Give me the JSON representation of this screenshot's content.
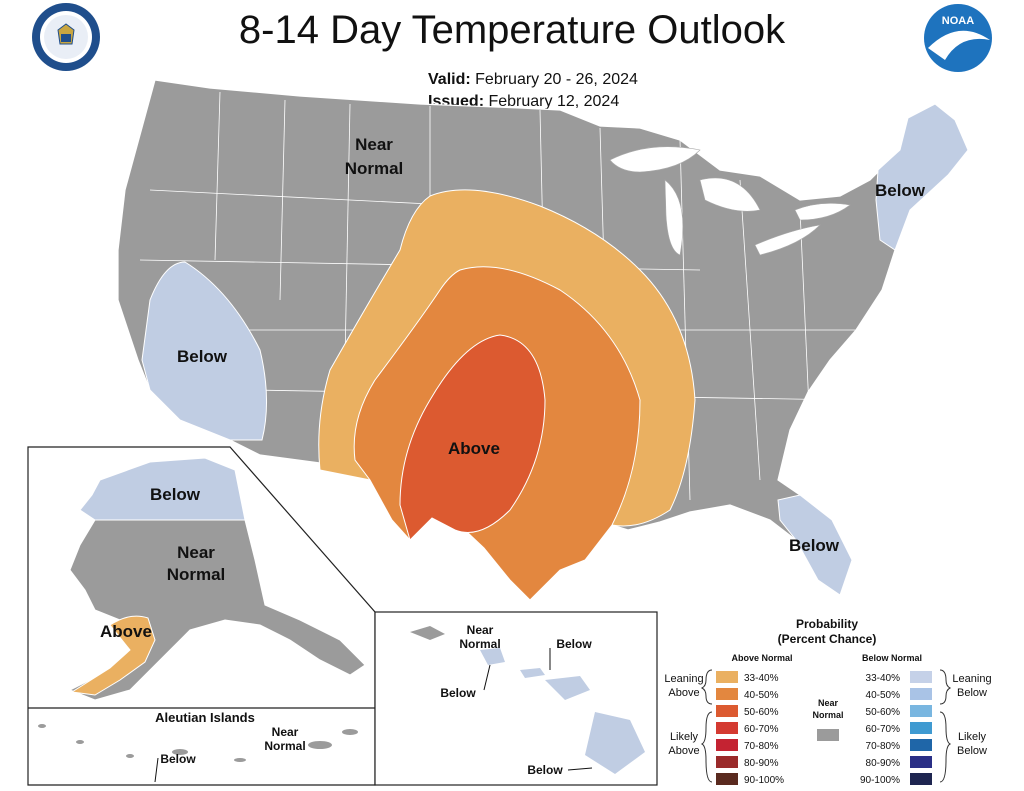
{
  "title": "8-14 Day Temperature Outlook",
  "valid_label": "Valid:",
  "valid_value": "February 20 - 26, 2024",
  "issued_label": "Issued:",
  "issued_value": "February 12, 2024",
  "logos": {
    "left": "doc-seal-icon",
    "right": "noaa-logo-icon"
  },
  "colors": {
    "near_normal": "#9b9b9b",
    "above_33_40": "#eab061",
    "above_40_50": "#e3873f",
    "above_50_60": "#dc5a30",
    "below_33_40": "#c0cde3"
  },
  "conus_labels": {
    "near_normal": [
      "Near",
      "Normal"
    ],
    "below_west": "Below",
    "below_northeast": "Below",
    "below_florida": "Below",
    "above_central": "Above"
  },
  "alaska_labels": {
    "below_north": "Below",
    "near_normal": [
      "Near",
      "Normal"
    ],
    "above_south": "Above"
  },
  "aleutian": {
    "title": "Aleutian Islands",
    "near_normal": [
      "Near",
      "Normal"
    ],
    "below": "Below"
  },
  "hawaii_labels": {
    "near_normal": [
      "Near",
      "Normal"
    ],
    "below_1": "Below",
    "below_2": "Below",
    "below_3": "Below"
  },
  "legend": {
    "title": "Probability",
    "subtitle": "(Percent Chance)",
    "above_header": "Above Normal",
    "below_header": "Below Normal",
    "near_normal": [
      "Near",
      "Normal"
    ],
    "leaning_above": [
      "Leaning",
      "Above"
    ],
    "likely_above": [
      "Likely",
      "Above"
    ],
    "leaning_below": [
      "Leaning",
      "Below"
    ],
    "likely_below": [
      "Likely",
      "Below"
    ],
    "above_items": [
      {
        "label": "33-40%",
        "color": "#eab061"
      },
      {
        "label": "40-50%",
        "color": "#e3873f"
      },
      {
        "label": "50-60%",
        "color": "#dc5a30"
      },
      {
        "label": "60-70%",
        "color": "#d43a31"
      },
      {
        "label": "70-80%",
        "color": "#c42332"
      },
      {
        "label": "80-90%",
        "color": "#9a2a2a"
      },
      {
        "label": "90-100%",
        "color": "#5a2a1f"
      }
    ],
    "below_items": [
      {
        "label": "33-40%",
        "color": "#c5d1e8"
      },
      {
        "label": "40-50%",
        "color": "#a9c3e6"
      },
      {
        "label": "50-60%",
        "color": "#79b6e0"
      },
      {
        "label": "60-70%",
        "color": "#3f9ad1"
      },
      {
        "label": "70-80%",
        "color": "#1f66a8"
      },
      {
        "label": "80-90%",
        "color": "#2a2f86"
      },
      {
        "label": "90-100%",
        "color": "#1e2550"
      }
    ]
  }
}
